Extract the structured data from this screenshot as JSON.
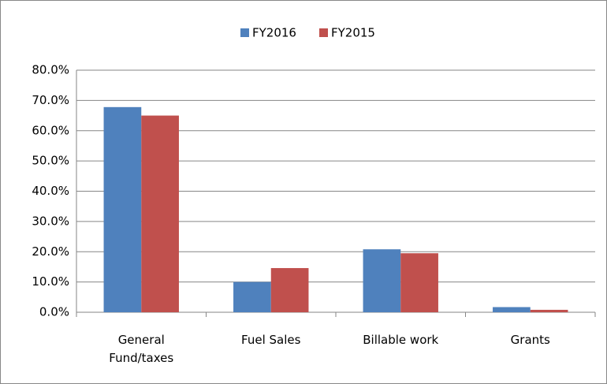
{
  "chart_data": {
    "type": "bar",
    "categories": [
      "General Fund/taxes",
      "Fuel Sales",
      "Billable work",
      "Grants"
    ],
    "series": [
      {
        "name": "FY2016",
        "color": "#4f81bd",
        "values": [
          67.8,
          10,
          20.8,
          1.7
        ]
      },
      {
        "name": "FY2015",
        "color": "#c0504d",
        "values": [
          65,
          14.6,
          19.5,
          0.8
        ]
      }
    ],
    "ylim": [
      0,
      80
    ],
    "yticks": [
      {
        "value": 0,
        "label": "0.0%"
      },
      {
        "value": 10,
        "label": "10.0%"
      },
      {
        "value": 20,
        "label": "20.0%"
      },
      {
        "value": 30,
        "label": "30.0%"
      },
      {
        "value": 40,
        "label": "40.0%"
      },
      {
        "value": 50,
        "label": "50.0%"
      },
      {
        "value": 60,
        "label": "60.0%"
      },
      {
        "value": 70,
        "label": "70.0%"
      },
      {
        "value": 80,
        "label": "80.0%"
      }
    ],
    "grid": true,
    "legend": "top"
  }
}
